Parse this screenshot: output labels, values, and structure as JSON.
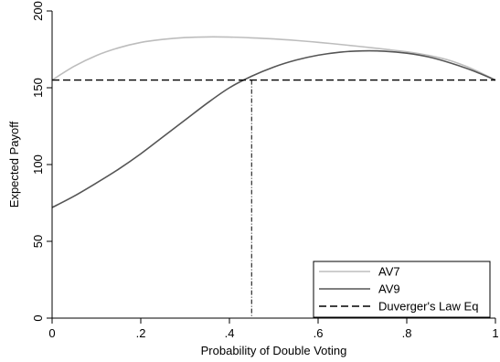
{
  "chart_data": {
    "type": "line",
    "title": "",
    "xlabel": "Probability of Double Voting",
    "ylabel": "Expected Payoff",
    "xlim": [
      0,
      1
    ],
    "ylim": [
      0,
      200
    ],
    "x_ticks": [
      0,
      0.2,
      0.4,
      0.6,
      0.8,
      1
    ],
    "x_tick_labels": [
      "0",
      ".2",
      ".4",
      ".6",
      ".8",
      "1"
    ],
    "y_ticks": [
      0,
      50,
      100,
      150,
      200
    ],
    "y_tick_labels": [
      "0",
      "50",
      "100",
      "150",
      "200"
    ],
    "grid": false,
    "legend_position": "bottom-right",
    "series": [
      {
        "name": "AV7",
        "color": "#bdbdbd",
        "style": "solid",
        "x": [
          0,
          0.05,
          0.1,
          0.15,
          0.2,
          0.25,
          0.3,
          0.35,
          0.4,
          0.45,
          0.5,
          0.55,
          0.6,
          0.65,
          0.7,
          0.75,
          0.8,
          0.85,
          0.9,
          0.95,
          1
        ],
        "y": [
          155,
          164,
          171,
          176,
          179.5,
          181.5,
          182.7,
          183.1,
          183,
          182.5,
          181.8,
          180.8,
          179.6,
          178.2,
          176.7,
          175.1,
          173.4,
          171,
          167.5,
          162,
          155
        ]
      },
      {
        "name": "AV9",
        "color": "#555555",
        "style": "solid",
        "x": [
          0,
          0.05,
          0.1,
          0.15,
          0.2,
          0.25,
          0.3,
          0.35,
          0.4,
          0.45,
          0.5,
          0.55,
          0.6,
          0.65,
          0.7,
          0.75,
          0.8,
          0.85,
          0.9,
          0.95,
          1
        ],
        "y": [
          72,
          79.5,
          88,
          97,
          107,
          118,
          129,
          140,
          150,
          157.5,
          163.5,
          168,
          171.2,
          173.2,
          174,
          173.8,
          172.5,
          170,
          166,
          161,
          155
        ]
      },
      {
        "name": "Duverger's Law Eq",
        "color": "#000000",
        "style": "dashed",
        "x": [
          0,
          1
        ],
        "y": [
          155,
          155
        ]
      }
    ],
    "drop_lines": [
      {
        "x": 0,
        "y": 155
      },
      {
        "x": 0.45,
        "y": 155
      }
    ]
  }
}
